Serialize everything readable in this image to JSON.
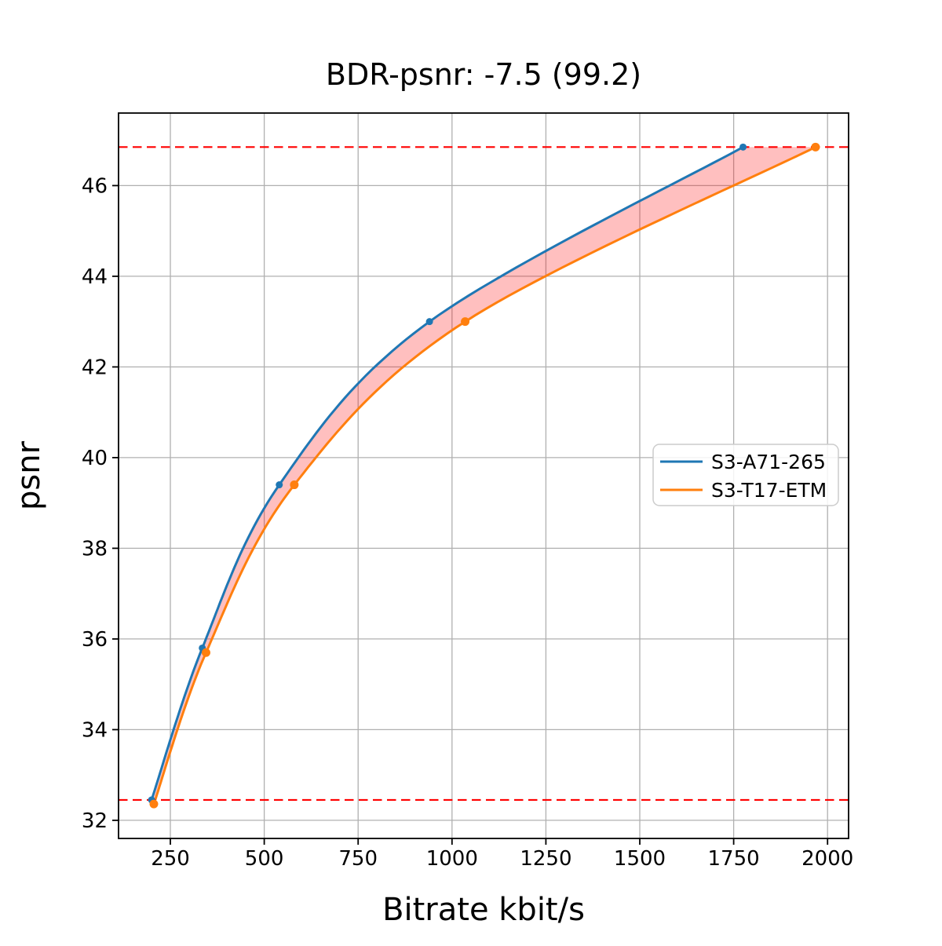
{
  "chart_data": {
    "type": "line",
    "title": "BDR-psnr: -7.5 (99.2)",
    "xlabel": "Bitrate kbit/s",
    "ylabel": "psnr",
    "xlim": [
      112,
      2056
    ],
    "ylim": [
      31.6,
      47.6
    ],
    "x_ticks": [
      250,
      500,
      750,
      1000,
      1250,
      1500,
      1750,
      2000
    ],
    "y_ticks": [
      32,
      34,
      36,
      38,
      40,
      42,
      44,
      46
    ],
    "grid": true,
    "legend_position": "center right",
    "series": [
      {
        "name": "S3-A71-265",
        "color": "#1f77b4",
        "points": [
          [
            200,
            32.45
          ],
          [
            335,
            35.8
          ],
          [
            540,
            39.4
          ],
          [
            940,
            43.0
          ],
          [
            1775,
            46.85
          ]
        ]
      },
      {
        "name": "S3-T17-ETM",
        "color": "#ff7f0e",
        "points": [
          [
            206,
            32.36
          ],
          [
            345,
            35.7
          ],
          [
            580,
            39.4
          ],
          [
            1035,
            43.0
          ],
          [
            1968,
            46.85
          ]
        ]
      }
    ],
    "reference_lines": [
      {
        "name": "max-overlap-psnr",
        "y": 46.85,
        "color": "#ff0000",
        "style": "dashed"
      },
      {
        "name": "min-overlap-psnr",
        "y": 32.45,
        "color": "#ff0000",
        "style": "dashed"
      }
    ],
    "fill_between": {
      "name": "bd-overlap-region",
      "color": "rgba(255,0,0,0.25)"
    }
  }
}
